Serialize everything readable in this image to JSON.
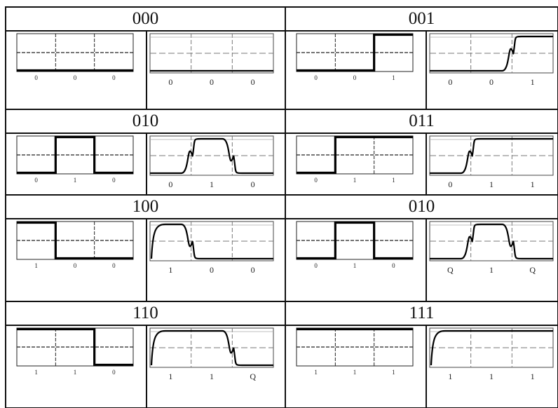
{
  "cells": [
    {
      "code": "000",
      "bits": [
        "0",
        "0",
        "0"
      ],
      "left_labels": [
        "0",
        "0",
        "0"
      ],
      "right_labels": [
        "0",
        "0",
        "0"
      ]
    },
    {
      "code": "001",
      "bits": [
        "0",
        "0",
        "1"
      ],
      "left_labels": [
        "0",
        "0",
        "1"
      ],
      "right_labels": [
        "0",
        "0",
        "1"
      ]
    },
    {
      "code": "010",
      "bits": [
        "0",
        "1",
        "0"
      ],
      "left_labels": [
        "0",
        "1",
        "0"
      ],
      "right_labels": [
        "0",
        "1",
        "0"
      ]
    },
    {
      "code": "011",
      "bits": [
        "0",
        "1",
        "1"
      ],
      "left_labels": [
        "0",
        "1",
        "1"
      ],
      "right_labels": [
        "0",
        "1",
        "1"
      ]
    },
    {
      "code": "100",
      "bits": [
        "1",
        "0",
        "0"
      ],
      "left_labels": [
        "1",
        "0",
        "0"
      ],
      "right_labels": [
        "1",
        "0",
        "0"
      ]
    },
    {
      "code": "010",
      "bits": [
        "0",
        "1",
        "0"
      ],
      "left_labels": [
        "0",
        "1",
        "0"
      ],
      "right_labels": [
        "Q",
        "1",
        "Q"
      ]
    },
    {
      "code": "110",
      "bits": [
        "1",
        "1",
        "0"
      ],
      "left_labels": [
        "1",
        "1",
        "0"
      ],
      "right_labels": [
        "1",
        "1",
        "Q"
      ]
    },
    {
      "code": "111",
      "bits": [
        "1",
        "1",
        "1"
      ],
      "left_labels": [
        "1",
        "1",
        "1"
      ],
      "right_labels": [
        "1",
        "1",
        "1"
      ]
    }
  ]
}
